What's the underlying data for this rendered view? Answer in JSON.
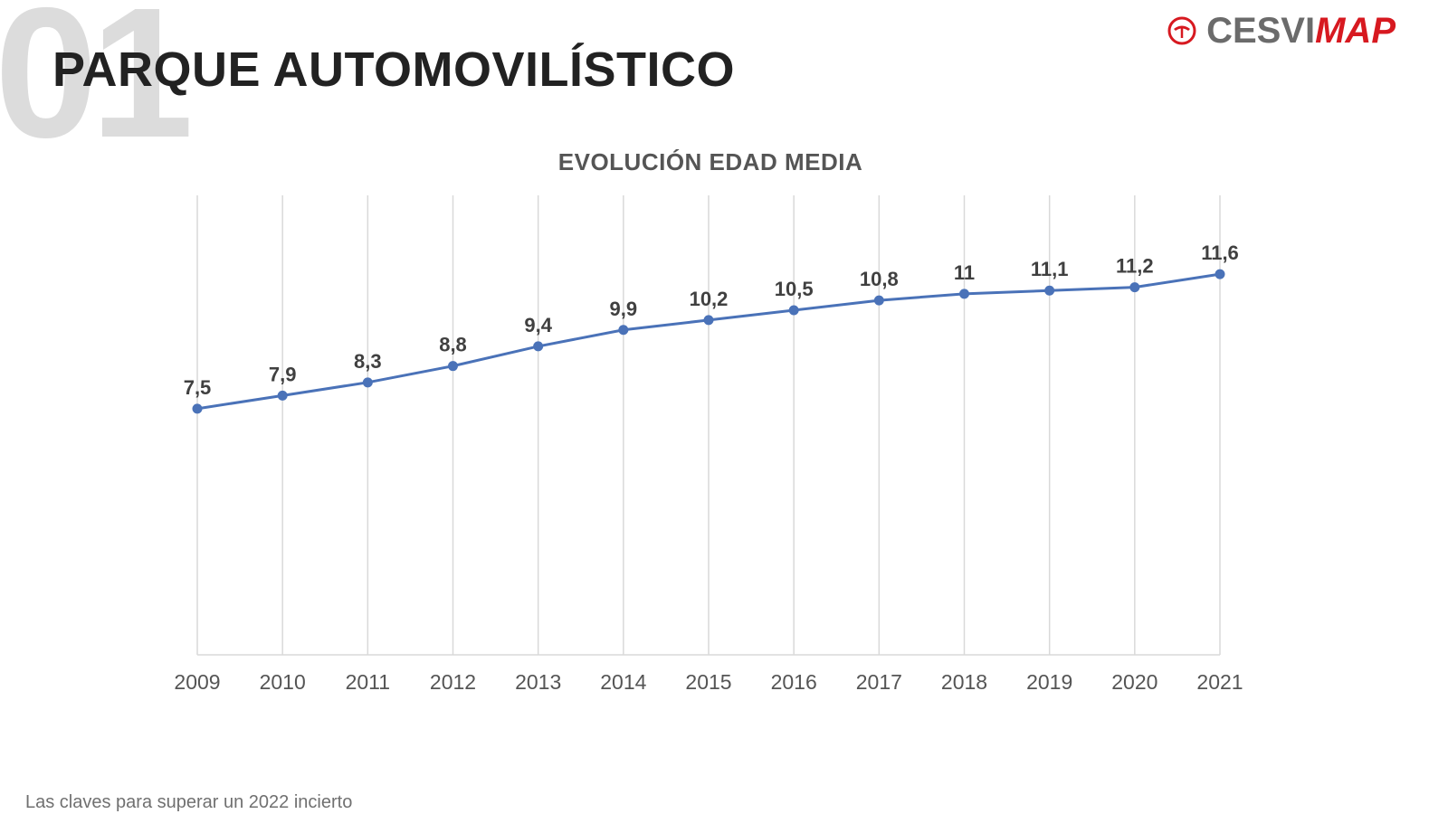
{
  "slide": {
    "number": "01",
    "title": "PARQUE AUTOMOVILÍSTICO",
    "footer": "Las claves para superar un 2022 incierto"
  },
  "logo": {
    "part1": "CESVI",
    "part2": "MAP"
  },
  "colors": {
    "line": "#4a72b8",
    "grid": "#d9d9d9",
    "brand": "#d71920"
  },
  "chart_data": {
    "type": "line",
    "title": "EVOLUCIÓN EDAD MEDIA",
    "categories": [
      "2009",
      "2010",
      "2011",
      "2012",
      "2013",
      "2014",
      "2015",
      "2016",
      "2017",
      "2018",
      "2019",
      "2020",
      "2021"
    ],
    "values": [
      7.5,
      7.9,
      8.3,
      8.8,
      9.4,
      9.9,
      10.2,
      10.5,
      10.8,
      11,
      11.1,
      11.2,
      11.6
    ],
    "data_labels": [
      "7,5",
      "7,9",
      "8,3",
      "8,8",
      "9,4",
      "9,9",
      "10,2",
      "10,5",
      "10,8",
      "11",
      "11,1",
      "11,2",
      "11,6"
    ],
    "ylim": [
      0,
      14
    ],
    "grid": "vertical",
    "legend": "none"
  }
}
